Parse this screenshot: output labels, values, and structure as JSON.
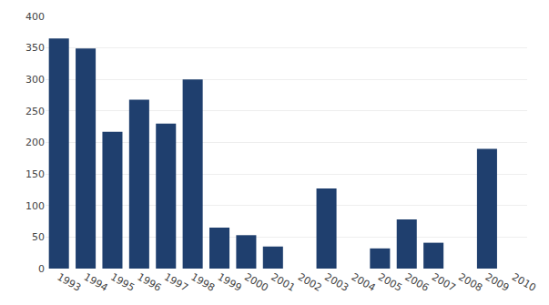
{
  "chart_data": {
    "type": "bar",
    "categories": [
      "1993",
      "1994",
      "1995",
      "1996",
      "1997",
      "1998",
      "1999",
      "2000",
      "2001",
      "2002",
      "2003",
      "2004",
      "2005",
      "2006",
      "2007",
      "2008",
      "2009",
      "2010"
    ],
    "values": [
      365,
      349,
      217,
      268,
      230,
      300,
      65,
      53,
      35,
      0,
      127,
      0,
      32,
      78,
      41,
      0,
      190,
      0
    ],
    "color": "#1F3F6E",
    "ylim": [
      0,
      400
    ],
    "yticks": [
      0,
      50,
      100,
      150,
      200,
      250,
      300,
      350,
      400
    ],
    "grid": true
  }
}
